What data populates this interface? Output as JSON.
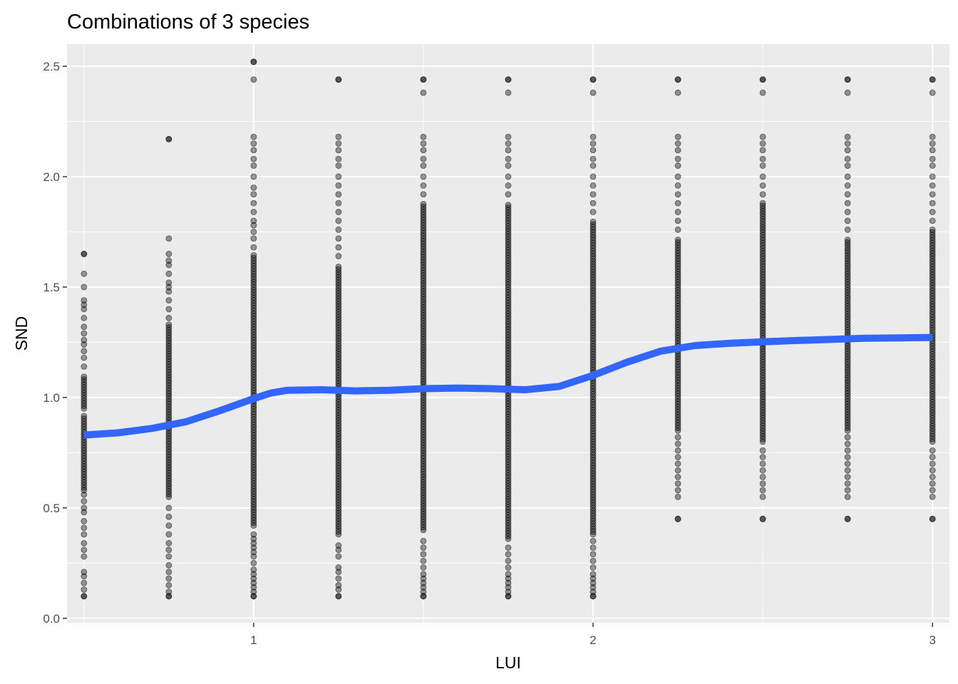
{
  "chart_data": {
    "type": "scatter",
    "title": "Combinations of 3 species",
    "xlabel": "LUI",
    "ylabel": "SND",
    "xlim": [
      0.45,
      3.05
    ],
    "ylim": [
      -0.02,
      2.6
    ],
    "x_ticks": [
      1,
      2,
      3
    ],
    "x_tick_labels": [
      "1",
      "2",
      "3"
    ],
    "y_ticks": [
      0.0,
      0.5,
      1.0,
      1.5,
      2.0,
      2.5
    ],
    "y_tick_labels": [
      "0.0",
      "0.5",
      "1.0",
      "1.5",
      "2.0",
      "2.5"
    ],
    "grid": true,
    "background_color": "#ebebeb",
    "point_color": "#000000",
    "smooth_color": "#3366ff",
    "point_columns": [
      {
        "x": 0.5,
        "min": 0.1,
        "max": 1.65,
        "dense": [
          [
            0.95,
            1.1
          ],
          [
            0.58,
            0.92
          ]
        ],
        "extra": [
          0.1,
          0.13,
          0.16,
          0.19,
          0.21,
          0.28,
          0.31,
          0.34,
          0.38,
          0.41,
          0.44,
          0.48,
          0.5,
          0.53,
          0.56,
          1.14,
          1.18,
          1.21,
          1.24,
          1.26,
          1.29,
          1.32,
          1.36,
          1.4,
          1.42,
          1.44,
          1.5,
          1.56,
          1.65
        ]
      },
      {
        "x": 0.75,
        "min": 0.1,
        "max": 2.17,
        "dense": [
          [
            0.55,
            1.33
          ]
        ],
        "extra": [
          0.1,
          0.12,
          0.15,
          0.18,
          0.21,
          0.24,
          0.28,
          0.31,
          0.34,
          0.38,
          0.42,
          0.46,
          0.5,
          1.36,
          1.4,
          1.44,
          1.48,
          1.5,
          1.52,
          1.56,
          1.6,
          1.62,
          1.65,
          1.72,
          2.17
        ]
      },
      {
        "x": 1.0,
        "min": 0.1,
        "max": 2.52,
        "dense": [
          [
            0.42,
            1.65
          ]
        ],
        "extra": [
          0.1,
          0.12,
          0.14,
          0.16,
          0.18,
          0.2,
          0.22,
          0.25,
          0.28,
          0.3,
          0.32,
          0.34,
          0.36,
          0.38,
          1.68,
          1.72,
          1.75,
          1.78,
          1.8,
          1.84,
          1.88,
          1.92,
          1.95,
          2.0,
          2.05,
          2.08,
          2.12,
          2.15,
          2.18,
          2.44,
          2.52
        ]
      },
      {
        "x": 1.25,
        "min": 0.1,
        "max": 2.44,
        "dense": [
          [
            0.38,
            1.6
          ]
        ],
        "extra": [
          0.1,
          0.13,
          0.15,
          0.18,
          0.21,
          0.23,
          0.28,
          0.31,
          0.33,
          1.64,
          1.68,
          1.72,
          1.76,
          1.8,
          1.84,
          1.88,
          1.92,
          1.96,
          2.0,
          2.05,
          2.08,
          2.12,
          2.15,
          2.18,
          2.44
        ]
      },
      {
        "x": 1.5,
        "min": 0.1,
        "max": 2.44,
        "dense": [
          [
            0.4,
            1.88
          ]
        ],
        "extra": [
          0.1,
          0.12,
          0.14,
          0.16,
          0.18,
          0.2,
          0.23,
          0.26,
          0.29,
          0.32,
          0.35,
          1.92,
          1.96,
          2.0,
          2.05,
          2.08,
          2.12,
          2.15,
          2.18,
          2.38,
          2.44
        ]
      },
      {
        "x": 1.75,
        "min": 0.1,
        "max": 2.44,
        "dense": [
          [
            0.36,
            1.88
          ]
        ],
        "extra": [
          0.1,
          0.12,
          0.14,
          0.16,
          0.18,
          0.2,
          0.23,
          0.26,
          0.29,
          0.32,
          1.92,
          1.96,
          2.0,
          2.05,
          2.08,
          2.12,
          2.15,
          2.18,
          2.38,
          2.44
        ]
      },
      {
        "x": 2.0,
        "min": 0.1,
        "max": 2.44,
        "dense": [
          [
            0.38,
            1.8
          ]
        ],
        "extra": [
          0.1,
          0.12,
          0.14,
          0.16,
          0.18,
          0.2,
          0.23,
          0.26,
          0.29,
          0.32,
          0.35,
          1.84,
          1.88,
          1.92,
          1.96,
          2.0,
          2.05,
          2.08,
          2.12,
          2.15,
          2.18,
          2.38,
          2.44
        ]
      },
      {
        "x": 2.25,
        "min": 0.45,
        "max": 2.44,
        "dense": [
          [
            0.85,
            1.72
          ]
        ],
        "extra": [
          0.45,
          0.55,
          0.58,
          0.61,
          0.64,
          0.67,
          0.7,
          0.73,
          0.76,
          0.79,
          0.82,
          1.76,
          1.8,
          1.84,
          1.88,
          1.92,
          1.96,
          2.0,
          2.05,
          2.08,
          2.12,
          2.15,
          2.18,
          2.38,
          2.44
        ]
      },
      {
        "x": 2.5,
        "min": 0.45,
        "max": 2.44,
        "dense": [
          [
            0.8,
            1.88
          ]
        ],
        "extra": [
          0.45,
          0.55,
          0.58,
          0.61,
          0.64,
          0.67,
          0.7,
          0.73,
          0.76,
          1.92,
          1.96,
          2.0,
          2.05,
          2.08,
          2.12,
          2.15,
          2.18,
          2.38,
          2.44
        ]
      },
      {
        "x": 2.75,
        "min": 0.45,
        "max": 2.44,
        "dense": [
          [
            0.85,
            1.72
          ]
        ],
        "extra": [
          0.45,
          0.55,
          0.58,
          0.61,
          0.64,
          0.67,
          0.7,
          0.73,
          0.76,
          0.79,
          0.82,
          1.76,
          1.8,
          1.84,
          1.88,
          1.92,
          1.96,
          2.0,
          2.05,
          2.08,
          2.12,
          2.15,
          2.18,
          2.38,
          2.44
        ]
      },
      {
        "x": 3.0,
        "min": 0.45,
        "max": 2.44,
        "dense": [
          [
            0.8,
            1.76
          ]
        ],
        "extra": [
          0.45,
          0.55,
          0.58,
          0.61,
          0.64,
          0.67,
          0.7,
          0.73,
          0.76,
          1.8,
          1.84,
          1.88,
          1.92,
          1.96,
          2.0,
          2.05,
          2.08,
          2.12,
          2.15,
          2.18,
          2.38,
          2.44
        ]
      }
    ],
    "smooth_line": {
      "x": [
        0.5,
        0.6,
        0.7,
        0.8,
        0.9,
        1.0,
        1.05,
        1.1,
        1.2,
        1.3,
        1.4,
        1.5,
        1.6,
        1.7,
        1.8,
        1.9,
        2.0,
        2.1,
        2.2,
        2.3,
        2.4,
        2.5,
        2.6,
        2.7,
        2.8,
        2.9,
        3.0
      ],
      "y": [
        0.83,
        0.84,
        0.86,
        0.89,
        0.94,
        0.995,
        1.02,
        1.033,
        1.035,
        1.03,
        1.033,
        1.04,
        1.043,
        1.04,
        1.035,
        1.05,
        1.1,
        1.16,
        1.21,
        1.235,
        1.245,
        1.252,
        1.258,
        1.263,
        1.268,
        1.27,
        1.272
      ]
    }
  }
}
